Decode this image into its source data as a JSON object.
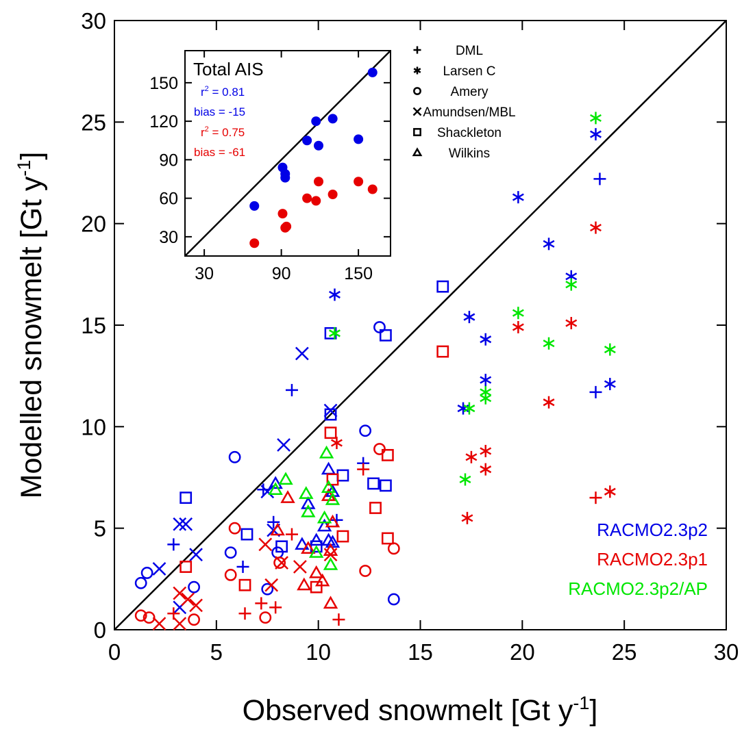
{
  "chart_data": {
    "type": "scatter",
    "xlabel": "Observed snowmelt [Gt y",
    "xlabel_sup": "-1",
    "xlabel_end": "]",
    "ylabel": "Modelled snowmelt [Gt y",
    "ylabel_sup": "-1",
    "ylabel_end": "]",
    "xlim": [
      0,
      30
    ],
    "ylim": [
      0,
      30
    ],
    "xticks": [
      "0",
      "5",
      "10",
      "15",
      "20",
      "25",
      "30"
    ],
    "yticks": [
      "0",
      "5",
      "10",
      "15",
      "20",
      "25",
      "30"
    ],
    "one_to_one_line": true,
    "grid": false,
    "colors": {
      "RACMO2.3p2": "#0000e6",
      "RACMO2.3p1": "#e60000",
      "RACMO2.3p2/AP": "#00e600"
    },
    "marker_icons": {
      "DML": "plus",
      "Larsen C": "asterisk",
      "Amery": "circle",
      "Amundsen/MBL": "cross",
      "Shackleton": "square",
      "Wilkins": "triangle"
    },
    "marker_legend": [
      "DML",
      "Larsen C",
      "Amery",
      "Amundsen/MBL",
      "Shackleton",
      "Wilkins"
    ],
    "legend_position": "top-center",
    "model_legend": [
      "RACMO2.3p2",
      "RACMO2.3p1",
      "RACMO2.3p2/AP"
    ],
    "model_legend_position": "bottom-right",
    "series": [
      {
        "name": "RACMO2.3p2",
        "points": {
          "DML": [
            [
              2.9,
              4.2
            ],
            [
              6.3,
              3.1
            ],
            [
              7.3,
              6.9
            ],
            [
              7.8,
              5.3
            ],
            [
              8.7,
              11.8
            ],
            [
              10.9,
              5.4
            ],
            [
              12.2,
              8.2
            ],
            [
              23.6,
              11.7
            ],
            [
              23.8,
              22.2
            ]
          ],
          "Larsen C": [
            [
              10.8,
              16.5
            ],
            [
              17.1,
              10.9
            ],
            [
              17.4,
              15.4
            ],
            [
              18.2,
              14.3
            ],
            [
              18.2,
              12.3
            ],
            [
              19.8,
              21.3
            ],
            [
              21.3,
              19.0
            ],
            [
              22.4,
              17.4
            ],
            [
              23.6,
              24.4
            ],
            [
              24.3,
              12.1
            ]
          ],
          "Amery": [
            [
              1.3,
              2.3
            ],
            [
              1.6,
              2.8
            ],
            [
              3.9,
              2.1
            ],
            [
              5.7,
              3.8
            ],
            [
              5.9,
              8.5
            ],
            [
              7.5,
              2.0
            ],
            [
              8.0,
              3.8
            ],
            [
              12.3,
              9.8
            ],
            [
              13.0,
              14.9
            ],
            [
              13.7,
              1.5
            ]
          ],
          "Amundsen/MBL": [
            [
              2.2,
              3.0
            ],
            [
              3.2,
              1.1
            ],
            [
              3.2,
              5.2
            ],
            [
              3.5,
              5.2
            ],
            [
              4.0,
              3.7
            ],
            [
              7.5,
              6.8
            ],
            [
              7.8,
              4.9
            ],
            [
              8.3,
              9.1
            ],
            [
              9.2,
              13.6
            ],
            [
              10.6,
              10.8
            ]
          ],
          "Shackleton": [
            [
              3.5,
              6.5
            ],
            [
              6.5,
              4.7
            ],
            [
              8.2,
              4.1
            ],
            [
              9.9,
              4.1
            ],
            [
              10.6,
              14.6
            ],
            [
              10.6,
              10.6
            ],
            [
              11.2,
              7.6
            ],
            [
              12.7,
              7.2
            ],
            [
              13.3,
              14.5
            ],
            [
              13.3,
              7.1
            ],
            [
              16.1,
              16.9
            ]
          ],
          "Wilkins": [
            [
              7.9,
              7.2
            ],
            [
              9.2,
              4.2
            ],
            [
              9.5,
              6.2
            ],
            [
              9.9,
              4.4
            ],
            [
              10.3,
              5.1
            ],
            [
              10.5,
              7.9
            ],
            [
              10.5,
              4.4
            ],
            [
              10.7,
              4.3
            ],
            [
              10.7,
              6.8
            ]
          ]
        }
      },
      {
        "name": "RACMO2.3p1",
        "points": {
          "DML": [
            [
              2.9,
              0.8
            ],
            [
              6.4,
              0.8
            ],
            [
              7.2,
              1.3
            ],
            [
              7.9,
              1.1
            ],
            [
              8.7,
              4.7
            ],
            [
              11.0,
              0.5
            ],
            [
              12.2,
              7.9
            ],
            [
              23.6,
              6.5
            ]
          ],
          "Larsen C": [
            [
              10.9,
              9.2
            ],
            [
              17.3,
              5.5
            ],
            [
              17.5,
              8.5
            ],
            [
              18.2,
              8.8
            ],
            [
              18.2,
              7.9
            ],
            [
              19.8,
              14.9
            ],
            [
              21.3,
              11.2
            ],
            [
              22.4,
              15.1
            ],
            [
              23.6,
              19.8
            ],
            [
              24.3,
              6.8
            ]
          ],
          "Amery": [
            [
              1.3,
              0.7
            ],
            [
              1.7,
              0.6
            ],
            [
              3.9,
              0.5
            ],
            [
              5.7,
              2.7
            ],
            [
              5.9,
              5.0
            ],
            [
              7.4,
              0.6
            ],
            [
              8.1,
              3.3
            ],
            [
              12.3,
              2.9
            ],
            [
              13.0,
              8.9
            ],
            [
              13.7,
              4.0
            ]
          ],
          "Amundsen/MBL": [
            [
              2.2,
              0.3
            ],
            [
              3.2,
              0.3
            ],
            [
              3.2,
              1.8
            ],
            [
              3.6,
              1.5
            ],
            [
              4.0,
              1.2
            ],
            [
              7.4,
              4.2
            ],
            [
              7.7,
              2.2
            ],
            [
              8.2,
              3.3
            ],
            [
              9.1,
              3.1
            ],
            [
              10.6,
              3.7
            ]
          ],
          "Shackleton": [
            [
              3.5,
              3.1
            ],
            [
              6.4,
              2.2
            ],
            [
              9.9,
              2.1
            ],
            [
              10.6,
              9.7
            ],
            [
              10.7,
              7.4
            ],
            [
              11.2,
              4.6
            ],
            [
              12.8,
              6.0
            ],
            [
              13.4,
              8.6
            ],
            [
              13.4,
              4.5
            ],
            [
              16.1,
              13.7
            ]
          ],
          "Wilkins": [
            [
              8.0,
              4.9
            ],
            [
              8.5,
              6.5
            ],
            [
              9.3,
              2.2
            ],
            [
              9.5,
              4.0
            ],
            [
              9.9,
              2.8
            ],
            [
              10.2,
              2.4
            ],
            [
              10.5,
              6.6
            ],
            [
              10.6,
              1.3
            ],
            [
              10.6,
              3.9
            ],
            [
              10.7,
              5.3
            ]
          ]
        }
      },
      {
        "name": "RACMO2.3p2/AP",
        "points": {
          "Larsen C": [
            [
              10.8,
              14.6
            ],
            [
              17.2,
              7.4
            ],
            [
              17.4,
              10.9
            ],
            [
              18.2,
              11.7
            ],
            [
              18.2,
              11.4
            ],
            [
              19.8,
              15.6
            ],
            [
              21.3,
              14.1
            ],
            [
              22.4,
              17.0
            ],
            [
              23.6,
              25.2
            ],
            [
              24.3,
              13.8
            ]
          ],
          "Wilkins": [
            [
              7.9,
              6.9
            ],
            [
              8.4,
              7.4
            ],
            [
              9.4,
              6.7
            ],
            [
              9.5,
              5.8
            ],
            [
              9.9,
              3.8
            ],
            [
              10.3,
              5.5
            ],
            [
              10.4,
              8.7
            ],
            [
              10.5,
              7.0
            ],
            [
              10.7,
              6.4
            ],
            [
              10.6,
              3.2
            ]
          ]
        }
      }
    ],
    "inset": {
      "title": "Total AIS",
      "xlim": [
        15,
        175
      ],
      "ylim": [
        15,
        175
      ],
      "xticks": [
        "30",
        "90",
        "150"
      ],
      "yticks": [
        "30",
        "60",
        "90",
        "120",
        "150"
      ],
      "one_to_one_line": true,
      "stats": [
        {
          "label_prefix": "r",
          "label_sup": "2",
          "label_rest": " = 0.81",
          "color": "#0000e6"
        },
        {
          "text": "bias = -15",
          "color": "#0000e6"
        },
        {
          "label_prefix": "r",
          "label_sup": "2",
          "label_rest": " = 0.75",
          "color": "#e60000"
        },
        {
          "text": "bias = -61",
          "color": "#e60000"
        }
      ],
      "series": [
        {
          "name": "RACMO2.3p2",
          "points": [
            [
              69,
              54
            ],
            [
              91,
              84
            ],
            [
              93,
              76
            ],
            [
              93,
              79
            ],
            [
              110,
              105
            ],
            [
              117,
              120
            ],
            [
              119,
              101
            ],
            [
              130,
              122
            ],
            [
              150,
              106
            ],
            [
              161,
              158
            ]
          ]
        },
        {
          "name": "RACMO2.3p1",
          "points": [
            [
              69,
              25
            ],
            [
              91,
              48
            ],
            [
              93,
              37
            ],
            [
              94,
              38
            ],
            [
              110,
              60
            ],
            [
              117,
              58
            ],
            [
              119,
              73
            ],
            [
              130,
              63
            ],
            [
              150,
              73
            ],
            [
              161,
              67
            ]
          ]
        }
      ]
    }
  }
}
